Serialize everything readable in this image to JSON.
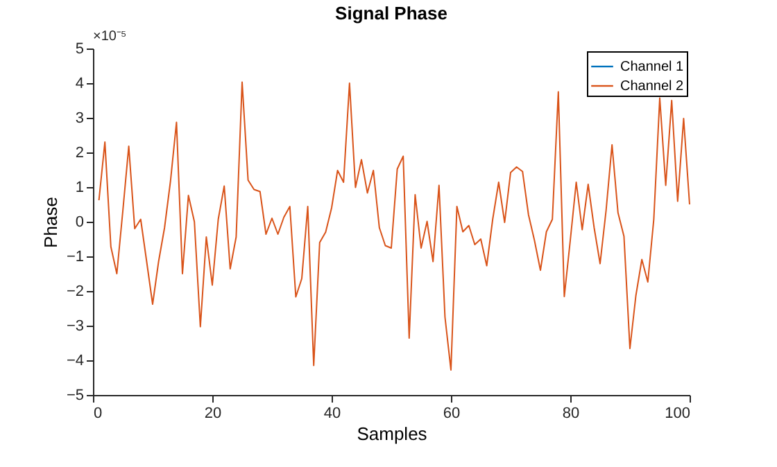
{
  "chart_data": {
    "type": "line",
    "title": "Signal Phase",
    "xlabel": "Samples",
    "ylabel": "Phase",
    "annotations": [
      "×10⁻⁵"
    ],
    "x": [
      1,
      2,
      3,
      4,
      5,
      6,
      7,
      8,
      9,
      10,
      11,
      12,
      13,
      14,
      15,
      16,
      17,
      18,
      19,
      20,
      21,
      22,
      23,
      24,
      25,
      26,
      27,
      28,
      29,
      30,
      31,
      32,
      33,
      34,
      35,
      36,
      37,
      38,
      39,
      40,
      41,
      42,
      43,
      44,
      45,
      46,
      47,
      48,
      49,
      50,
      51,
      52,
      53,
      54,
      55,
      56,
      57,
      58,
      59,
      60,
      61,
      62,
      63,
      64,
      65,
      66,
      67,
      68,
      69,
      70,
      71,
      72,
      73,
      74,
      75,
      76,
      77,
      78,
      79,
      80,
      81,
      82,
      83,
      84,
      85,
      86,
      87,
      88,
      89,
      90,
      91,
      92,
      93,
      94,
      95,
      96,
      97,
      98,
      99,
      100
    ],
    "series": [
      {
        "name": "Channel 1",
        "color": "#0072bd",
        "values": [
          null,
          null,
          null,
          null,
          null,
          null,
          null,
          null,
          null,
          null,
          null,
          null,
          null,
          null,
          null,
          null,
          null,
          null,
          null,
          null,
          null,
          null,
          null,
          null,
          null,
          null,
          null,
          null,
          null,
          null,
          null,
          null,
          null,
          null,
          null,
          null,
          null,
          null,
          null,
          null,
          null,
          null,
          null,
          null,
          null,
          null,
          null,
          null,
          null,
          null,
          null,
          null,
          null,
          null,
          null,
          null,
          null,
          null,
          null,
          null,
          null,
          null,
          null,
          null,
          null,
          null,
          null,
          null,
          null,
          null,
          null,
          null,
          null,
          null,
          null,
          null,
          null,
          null,
          null,
          null,
          null,
          null,
          null,
          null,
          null,
          null,
          null,
          null,
          null,
          null,
          null,
          null,
          null,
          null,
          null,
          null,
          null,
          null,
          null,
          null
        ]
      },
      {
        "name": "Channel 2",
        "color": "#d95319",
        "values": [
          0.62,
          2.3,
          -0.72,
          -1.5,
          0.3,
          2.18,
          -0.2,
          0.07,
          -1.15,
          -2.38,
          -1.15,
          -0.17,
          1.18,
          2.87,
          -1.5,
          0.76,
          0.0,
          -3.03,
          -0.44,
          -1.83,
          0.07,
          1.03,
          -1.36,
          -0.44,
          4.03,
          1.2,
          0.93,
          0.87,
          -0.36,
          0.1,
          -0.36,
          0.13,
          0.44,
          -2.17,
          -1.64,
          0.44,
          -4.15,
          -0.6,
          -0.3,
          0.4,
          1.48,
          1.14,
          4.0,
          0.99,
          1.79,
          0.83,
          1.48,
          -0.17,
          -0.69,
          -0.76,
          1.52,
          1.89,
          -3.36,
          0.78,
          -0.76,
          0.01,
          -1.15,
          1.05,
          -2.75,
          -4.28,
          0.44,
          -0.29,
          -0.11,
          -0.66,
          -0.5,
          -1.27,
          0.07,
          1.14,
          -0.02,
          1.42,
          1.58,
          1.45,
          0.2,
          -0.54,
          -1.4,
          -0.29,
          0.07,
          3.75,
          -2.16,
          -0.54,
          1.14,
          -0.23,
          1.08,
          -0.17,
          -1.21,
          0.32,
          2.22,
          0.26,
          -0.42,
          -3.66,
          -2.13,
          -1.09,
          -1.74,
          0.07,
          3.57,
          1.05,
          3.5,
          0.59,
          2.98,
          0.5
        ]
      }
    ],
    "xlim": [
      0,
      100
    ],
    "xticks": [
      0,
      20,
      40,
      60,
      80,
      100
    ],
    "ylim": [
      -5,
      5
    ],
    "yticks": [
      -5,
      -4,
      -3,
      -2,
      -1,
      0,
      1,
      2,
      3,
      4,
      5
    ],
    "legend": "top right",
    "grid": false,
    "marker": "none",
    "line_style": "solid"
  }
}
